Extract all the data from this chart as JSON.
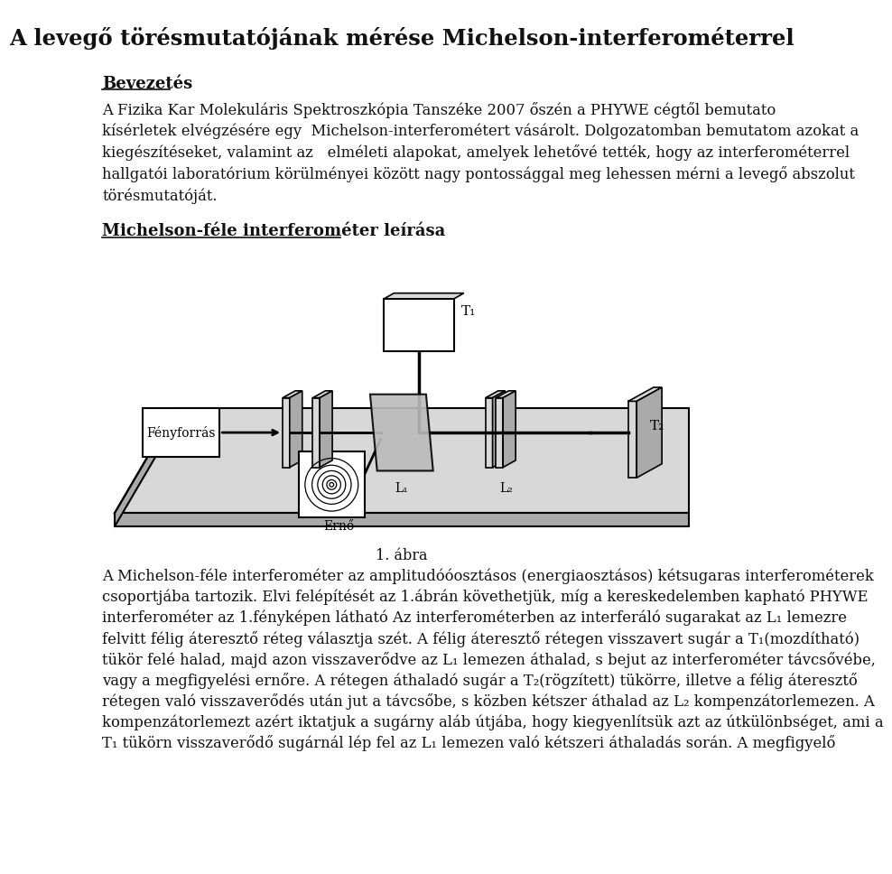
{
  "title": "A levegő törésmutatójának mérése Michelson-interferométerrel",
  "background_color": "#ffffff",
  "text_color": "#111111",
  "section1_heading": "Bevezetés",
  "section2_heading": "Michelson-féle interferométer leírása",
  "figure_caption": "1. ábra",
  "para1_lines": [
    "A Fizika Kar Molekuláris Spektroszkópia Tanszéke 2007 őszén a PHYWE cégtől bemutato",
    "kísérletek elvégzésére egy  Michelson-interferométert vásárolt. Dolgozatomban bemutatom azokat a",
    "kiegészítéseket, valamint az   elméleti alapokat, amelyek lehetővé tették, hogy az interferométerrel",
    "hallgatói laboratórium körülményei között nagy pontossággal meg lehessen mérni a levegő abszolut",
    "törésmutatóját."
  ],
  "para2_lines": [
    "A Michelson-féle interferométer az amplitudóóosztásos (energiaosztásos) kétsugaras interferométerek",
    "csoportjába tartozik. Elvi felépítését az 1.ábrán követhetjük, míg a kereskedelemben kapható PHYWE",
    "interferométer az 1.fényképen látható Az interferométerben az interferáló sugarakat az L₁ lemezre",
    "felvitt félig áteresztő réteg választja szét. A félig áteresztő rétegen visszavert sugár a T₁(mozdítható)",
    "tükör felé halad, majd azon visszaverődve az L₁ lemezen áthalad, s bejut az interferométer távcsővébe,",
    "vagy a megfigyelési ernőre. A rétegen áthaladó sugár a T₂(rögzített) tükörre, illetve a félig áteresztő",
    "rétegen való visszaverődés után jut a távcsőbe, s közben kétszer áthalad az L₂ kompenzátorlemezen. A",
    "kompenzátorlemezt azért iktatjuk a sugárny aláb útjába, hogy kiegyenlítsük azt az útkülönbséget, ami a",
    "T₁ tükörn visszaverődő sugárnál lép fel az L₁ lemezen való kétszeri áthaladás során. A megfigyelő"
  ]
}
